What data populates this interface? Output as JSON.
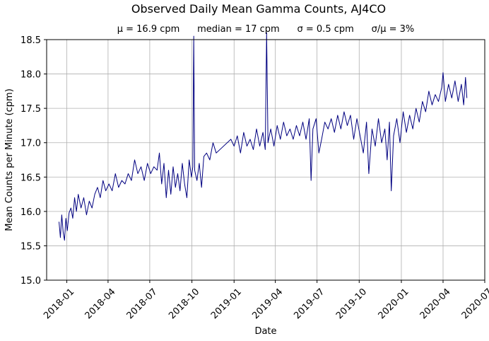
{
  "chart_data": {
    "type": "line",
    "title": "Observed Daily Mean Gamma Counts, AJ4CO",
    "subtitle": "μ = 16.9 cpm      median = 17 cpm      σ = 0.5 cpm      σ/μ = 3%",
    "xlabel": "Date",
    "ylabel": "Mean Counts per Minute (cpm)",
    "x_range": [
      "2017-11-18",
      "2020-07-01"
    ],
    "ylim": [
      15.0,
      18.5
    ],
    "grid": true,
    "x_ticks": [
      "2018-01",
      "2018-04",
      "2018-07",
      "2018-10",
      "2019-01",
      "2019-04",
      "2019-07",
      "2019-10",
      "2020-01",
      "2020-04",
      "2020-07"
    ],
    "y_ticks": [
      "15.0",
      "15.5",
      "16.0",
      "16.5",
      "17.0",
      "17.5",
      "18.0",
      "18.5"
    ],
    "series": [
      {
        "color": "#000080",
        "points": [
          [
            "2017-12-15",
            15.85
          ],
          [
            "2017-12-18",
            15.62
          ],
          [
            "2017-12-21",
            15.95
          ],
          [
            "2017-12-24",
            15.7
          ],
          [
            "2017-12-27",
            15.58
          ],
          [
            "2017-12-30",
            15.9
          ],
          [
            "2018-01-02",
            15.72
          ],
          [
            "2018-01-06",
            15.98
          ],
          [
            "2018-01-10",
            16.05
          ],
          [
            "2018-01-14",
            15.9
          ],
          [
            "2018-01-18",
            16.2
          ],
          [
            "2018-01-22",
            16.0
          ],
          [
            "2018-01-26",
            16.25
          ],
          [
            "2018-02-01",
            16.05
          ],
          [
            "2018-02-07",
            16.2
          ],
          [
            "2018-02-13",
            15.95
          ],
          [
            "2018-02-19",
            16.15
          ],
          [
            "2018-02-25",
            16.05
          ],
          [
            "2018-03-03",
            16.25
          ],
          [
            "2018-03-09",
            16.35
          ],
          [
            "2018-03-15",
            16.2
          ],
          [
            "2018-03-21",
            16.45
          ],
          [
            "2018-03-27",
            16.3
          ],
          [
            "2018-04-03",
            16.4
          ],
          [
            "2018-04-10",
            16.3
          ],
          [
            "2018-04-17",
            16.55
          ],
          [
            "2018-04-24",
            16.35
          ],
          [
            "2018-05-01",
            16.45
          ],
          [
            "2018-05-08",
            16.4
          ],
          [
            "2018-05-15",
            16.55
          ],
          [
            "2018-05-22",
            16.45
          ],
          [
            "2018-05-29",
            16.75
          ],
          [
            "2018-06-05",
            16.55
          ],
          [
            "2018-06-12",
            16.65
          ],
          [
            "2018-06-19",
            16.45
          ],
          [
            "2018-06-26",
            16.7
          ],
          [
            "2018-07-03",
            16.55
          ],
          [
            "2018-07-10",
            16.65
          ],
          [
            "2018-07-17",
            16.6
          ],
          [
            "2018-07-22",
            16.85
          ],
          [
            "2018-07-27",
            16.4
          ],
          [
            "2018-08-01",
            16.7
          ],
          [
            "2018-08-06",
            16.2
          ],
          [
            "2018-08-11",
            16.6
          ],
          [
            "2018-08-16",
            16.25
          ],
          [
            "2018-08-21",
            16.65
          ],
          [
            "2018-08-26",
            16.35
          ],
          [
            "2018-08-31",
            16.55
          ],
          [
            "2018-09-05",
            16.3
          ],
          [
            "2018-09-10",
            16.7
          ],
          [
            "2018-09-15",
            16.4
          ],
          [
            "2018-09-20",
            16.2
          ],
          [
            "2018-09-25",
            16.75
          ],
          [
            "2018-09-30",
            16.5
          ],
          [
            "2018-10-03",
            16.65
          ],
          [
            "2018-10-05",
            18.55
          ],
          [
            "2018-10-07",
            16.6
          ],
          [
            "2018-10-12",
            16.45
          ],
          [
            "2018-10-17",
            16.7
          ],
          [
            "2018-10-22",
            16.35
          ],
          [
            "2018-10-27",
            16.8
          ],
          [
            "2018-11-02",
            16.85
          ],
          [
            "2018-11-09",
            16.75
          ],
          [
            "2018-11-16",
            17.0
          ],
          [
            "2018-11-23",
            16.85
          ],
          [
            "2018-12-01",
            16.9
          ],
          [
            "2018-12-25",
            17.05
          ],
          [
            "2019-01-01",
            16.95
          ],
          [
            "2019-01-08",
            17.1
          ],
          [
            "2019-01-15",
            16.85
          ],
          [
            "2019-01-22",
            17.15
          ],
          [
            "2019-01-29",
            16.95
          ],
          [
            "2019-02-05",
            17.05
          ],
          [
            "2019-02-12",
            16.9
          ],
          [
            "2019-02-19",
            17.2
          ],
          [
            "2019-02-26",
            16.95
          ],
          [
            "2019-03-05",
            17.15
          ],
          [
            "2019-03-10",
            16.9
          ],
          [
            "2019-03-13",
            18.6
          ],
          [
            "2019-03-16",
            17.0
          ],
          [
            "2019-03-22",
            17.2
          ],
          [
            "2019-03-29",
            16.95
          ],
          [
            "2019-04-05",
            17.25
          ],
          [
            "2019-04-12",
            17.05
          ],
          [
            "2019-04-19",
            17.3
          ],
          [
            "2019-04-26",
            17.1
          ],
          [
            "2019-05-03",
            17.2
          ],
          [
            "2019-05-10",
            17.05
          ],
          [
            "2019-05-17",
            17.25
          ],
          [
            "2019-05-24",
            17.1
          ],
          [
            "2019-05-31",
            17.3
          ],
          [
            "2019-06-07",
            17.05
          ],
          [
            "2019-06-14",
            17.35
          ],
          [
            "2019-06-18",
            16.45
          ],
          [
            "2019-06-22",
            17.2
          ],
          [
            "2019-06-29",
            17.35
          ],
          [
            "2019-07-05",
            16.85
          ],
          [
            "2019-07-11",
            17.05
          ],
          [
            "2019-07-18",
            17.3
          ],
          [
            "2019-07-25",
            17.2
          ],
          [
            "2019-08-01",
            17.35
          ],
          [
            "2019-08-08",
            17.15
          ],
          [
            "2019-08-15",
            17.4
          ],
          [
            "2019-08-22",
            17.2
          ],
          [
            "2019-08-29",
            17.45
          ],
          [
            "2019-09-05",
            17.25
          ],
          [
            "2019-09-12",
            17.4
          ],
          [
            "2019-09-19",
            17.05
          ],
          [
            "2019-09-26",
            17.35
          ],
          [
            "2019-10-03",
            17.1
          ],
          [
            "2019-10-10",
            16.85
          ],
          [
            "2019-10-17",
            17.3
          ],
          [
            "2019-10-22",
            16.55
          ],
          [
            "2019-10-29",
            17.2
          ],
          [
            "2019-11-05",
            16.95
          ],
          [
            "2019-11-12",
            17.35
          ],
          [
            "2019-11-19",
            17.0
          ],
          [
            "2019-11-26",
            17.2
          ],
          [
            "2019-12-01",
            16.75
          ],
          [
            "2019-12-06",
            17.3
          ],
          [
            "2019-12-10",
            16.3
          ],
          [
            "2019-12-15",
            17.1
          ],
          [
            "2019-12-22",
            17.35
          ],
          [
            "2019-12-29",
            17.0
          ],
          [
            "2020-01-05",
            17.45
          ],
          [
            "2020-01-12",
            17.15
          ],
          [
            "2020-01-19",
            17.4
          ],
          [
            "2020-01-26",
            17.2
          ],
          [
            "2020-02-02",
            17.5
          ],
          [
            "2020-02-09",
            17.3
          ],
          [
            "2020-02-16",
            17.6
          ],
          [
            "2020-02-23",
            17.45
          ],
          [
            "2020-03-01",
            17.75
          ],
          [
            "2020-03-08",
            17.55
          ],
          [
            "2020-03-15",
            17.7
          ],
          [
            "2020-03-22",
            17.6
          ],
          [
            "2020-03-29",
            17.8
          ],
          [
            "2020-04-01",
            18.02
          ],
          [
            "2020-04-06",
            17.6
          ],
          [
            "2020-04-13",
            17.85
          ],
          [
            "2020-04-20",
            17.65
          ],
          [
            "2020-04-27",
            17.9
          ],
          [
            "2020-05-04",
            17.6
          ],
          [
            "2020-05-11",
            17.85
          ],
          [
            "2020-05-16",
            17.55
          ],
          [
            "2020-05-20",
            17.95
          ],
          [
            "2020-05-23",
            17.65
          ]
        ]
      }
    ]
  }
}
